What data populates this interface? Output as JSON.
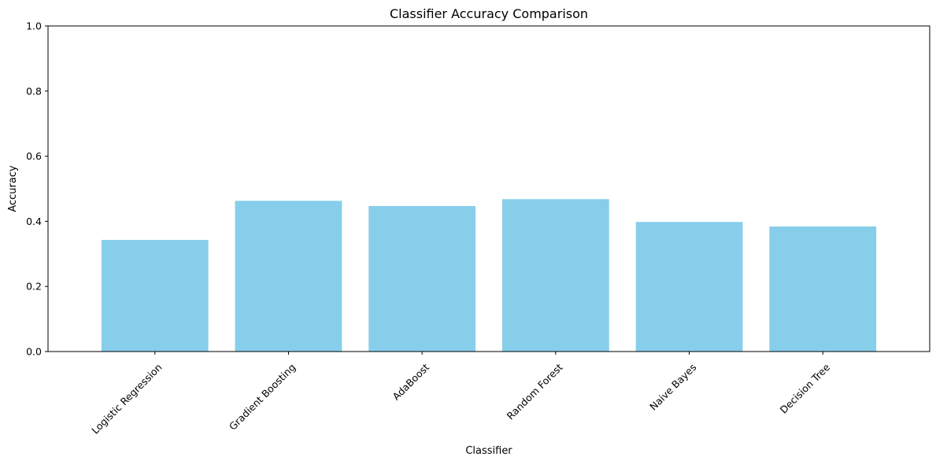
{
  "chart_data": {
    "type": "bar",
    "title": "Classifier Accuracy Comparison",
    "xlabel": "Classifier",
    "ylabel": "Accuracy",
    "categories": [
      "Logistic Regression",
      "Gradient Boosting",
      "AdaBoost",
      "Random Forest",
      "Naive Bayes",
      "Decision Tree"
    ],
    "values": [
      0.343,
      0.463,
      0.447,
      0.468,
      0.398,
      0.384
    ],
    "ylim": [
      0,
      1
    ],
    "yticks": [
      0.0,
      0.2,
      0.4,
      0.6,
      0.8,
      1.0
    ],
    "ytick_labels": [
      "0.0",
      "0.2",
      "0.4",
      "0.6",
      "0.8",
      "1.0"
    ],
    "grid": false,
    "legend": "none",
    "bar_color": "#87ceeb",
    "xtick_rotation_deg": 45
  }
}
